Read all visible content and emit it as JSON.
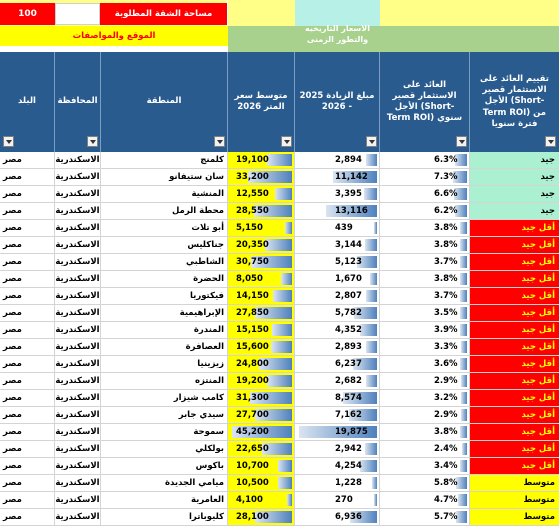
{
  "top": {
    "area_value": "100",
    "area_label": "مساحة الشقة المطلوبة",
    "location_label": "الموقع والمواصفات",
    "history_label": "الاسعار التاريخيه والتطور الزمنى"
  },
  "columns": {
    "rating": "تقييم العائد على الاستثمار قصير الأجل (Short-Term ROI) من فترة سنويا",
    "roi_short": "العائد على الاستثمار قصير الأجل (Short-Term ROI) سنوي",
    "increase": "مبلغ الزيادة 2025 - 2026",
    "price": "متوسط سعر المتر 2026",
    "region": "المنطقة",
    "governorate": "المحافظة",
    "country": "البلد"
  },
  "colors": {
    "header_blue": "#2a5b8f",
    "good_green": "#aaf0d1",
    "low_red": "#ff0000",
    "medium_yellow": "#ffff00",
    "light_green": "#a9d18e",
    "data_bar_blue": "#4f81bd"
  },
  "rows": [
    {
      "country": "مصر",
      "gov": "الاسكندرية",
      "region": "كليوباترا",
      "price": "28,100",
      "price_v": 28100,
      "inc": "6,936",
      "inc_v": 6936,
      "roi": "5.7%",
      "roi_v": 5.7,
      "rating": "متوسط",
      "level": "medium"
    }
  ],
  "all_rows": [
    {
      "country": "مصر",
      "gov": "الاسكندرية",
      "region": "كلمنج",
      "price": "19,100",
      "price_v": 19100,
      "inc": "2,894",
      "inc_v": 2894,
      "roi": "6.3%",
      "roi_v": 6.3,
      "rating": "جيد",
      "level": "good"
    },
    {
      "country": "مصر",
      "gov": "الاسكندرية",
      "region": "سان ستيفانو",
      "price": "33,200",
      "price_v": 33200,
      "inc": "11,142",
      "inc_v": 11142,
      "roi": "7.3%",
      "roi_v": 7.3,
      "rating": "جيد",
      "level": "good"
    },
    {
      "country": "مصر",
      "gov": "الاسكندرية",
      "region": "المنشية",
      "price": "12,550",
      "price_v": 12550,
      "inc": "3,395",
      "inc_v": 3395,
      "roi": "6.6%",
      "roi_v": 6.6,
      "rating": "جيد",
      "level": "good"
    },
    {
      "country": "مصر",
      "gov": "الاسكندرية",
      "region": "محطة الرمل",
      "price": "28,550",
      "price_v": 28550,
      "inc": "13,116",
      "inc_v": 13116,
      "roi": "6.2%",
      "roi_v": 6.2,
      "rating": "جيد",
      "level": "good"
    },
    {
      "country": "مصر",
      "gov": "الاسكندرية",
      "region": "أبو تلات",
      "price": "5,150",
      "price_v": 5150,
      "inc": "439",
      "inc_v": 439,
      "roi": "3.8%",
      "roi_v": 3.8,
      "rating": "أقل جيد",
      "level": "low"
    },
    {
      "country": "مصر",
      "gov": "الاسكندرية",
      "region": "جناكليس",
      "price": "20,350",
      "price_v": 20350,
      "inc": "3,144",
      "inc_v": 3144,
      "roi": "3.8%",
      "roi_v": 3.8,
      "rating": "أقل جيد",
      "level": "low"
    },
    {
      "country": "مصر",
      "gov": "الاسكندرية",
      "region": "الشاطبي",
      "price": "30,750",
      "price_v": 30750,
      "inc": "5,123",
      "inc_v": 5123,
      "roi": "3.7%",
      "roi_v": 3.7,
      "rating": "أقل جيد",
      "level": "low"
    },
    {
      "country": "مصر",
      "gov": "الاسكندرية",
      "region": "الحضرة",
      "price": "8,050",
      "price_v": 8050,
      "inc": "1,670",
      "inc_v": 1670,
      "roi": "3.8%",
      "roi_v": 3.8,
      "rating": "أقل جيد",
      "level": "low"
    },
    {
      "country": "مصر",
      "gov": "الاسكندرية",
      "region": "فيكتوريا",
      "price": "14,150",
      "price_v": 14150,
      "inc": "2,807",
      "inc_v": 2807,
      "roi": "3.7%",
      "roi_v": 3.7,
      "rating": "أقل جيد",
      "level": "low"
    },
    {
      "country": "مصر",
      "gov": "الاسكندرية",
      "region": "الإبراهيمية",
      "price": "27,850",
      "price_v": 27850,
      "inc": "5,782",
      "inc_v": 5782,
      "roi": "3.5%",
      "roi_v": 3.5,
      "rating": "أقل جيد",
      "level": "low"
    },
    {
      "country": "مصر",
      "gov": "الاسكندرية",
      "region": "المندرة",
      "price": "15,150",
      "price_v": 15150,
      "inc": "4,352",
      "inc_v": 4352,
      "roi": "3.9%",
      "roi_v": 3.9,
      "rating": "أقل جيد",
      "level": "low"
    },
    {
      "country": "مصر",
      "gov": "الاسكندرية",
      "region": "العصافرة",
      "price": "15,600",
      "price_v": 15600,
      "inc": "2,893",
      "inc_v": 2893,
      "roi": "3.3%",
      "roi_v": 3.3,
      "rating": "أقل جيد",
      "level": "low"
    },
    {
      "country": "مصر",
      "gov": "الاسكندرية",
      "region": "زيزينيا",
      "price": "24,800",
      "price_v": 24800,
      "inc": "6,237",
      "inc_v": 6237,
      "roi": "3.6%",
      "roi_v": 3.6,
      "rating": "أقل جيد",
      "level": "low"
    },
    {
      "country": "مصر",
      "gov": "الاسكندرية",
      "region": "المنتزه",
      "price": "19,200",
      "price_v": 19200,
      "inc": "2,682",
      "inc_v": 2682,
      "roi": "2.9%",
      "roi_v": 2.9,
      "rating": "أقل جيد",
      "level": "low"
    },
    {
      "country": "مصر",
      "gov": "الاسكندرية",
      "region": "كامب شيزار",
      "price": "31,300",
      "price_v": 31300,
      "inc": "8,574",
      "inc_v": 8574,
      "roi": "3.2%",
      "roi_v": 3.2,
      "rating": "أقل جيد",
      "level": "low"
    },
    {
      "country": "مصر",
      "gov": "الاسكندرية",
      "region": "سيدي جابر",
      "price": "27,700",
      "price_v": 27700,
      "inc": "7,162",
      "inc_v": 7162,
      "roi": "2.9%",
      "roi_v": 2.9,
      "rating": "أقل جيد",
      "level": "low"
    },
    {
      "country": "مصر",
      "gov": "الاسكندرية",
      "region": "سموحة",
      "price": "45,200",
      "price_v": 45200,
      "inc": "19,875",
      "inc_v": 19875,
      "roi": "3.8%",
      "roi_v": 3.8,
      "rating": "أقل جيد",
      "level": "low"
    },
    {
      "country": "مصر",
      "gov": "الاسكندرية",
      "region": "بولكلي",
      "price": "22,650",
      "price_v": 22650,
      "inc": "2,942",
      "inc_v": 2942,
      "roi": "2.4%",
      "roi_v": 2.4,
      "rating": "أقل جيد",
      "level": "low"
    },
    {
      "country": "مصر",
      "gov": "الاسكندرية",
      "region": "باكوس",
      "price": "10,700",
      "price_v": 10700,
      "inc": "4,254",
      "inc_v": 4254,
      "roi": "3.4%",
      "roi_v": 3.4,
      "rating": "أقل جيد",
      "level": "low"
    },
    {
      "country": "مصر",
      "gov": "الاسكندرية",
      "region": "ميامي الجديدة",
      "price": "10,500",
      "price_v": 10500,
      "inc": "1,228",
      "inc_v": 1228,
      "roi": "5.8%",
      "roi_v": 5.8,
      "rating": "متوسط",
      "level": "medium"
    },
    {
      "country": "مصر",
      "gov": "الاسكندرية",
      "region": "العامرية",
      "price": "4,100",
      "price_v": 4100,
      "inc": "270",
      "inc_v": 270,
      "roi": "4.7%",
      "roi_v": 4.7,
      "rating": "متوسط",
      "level": "medium"
    },
    {
      "country": "مصر",
      "gov": "الاسكندرية",
      "region": "كليوباترا",
      "price": "28,100",
      "price_v": 28100,
      "inc": "6,936",
      "inc_v": 6936,
      "roi": "5.7%",
      "roi_v": 5.7,
      "rating": "متوسط",
      "level": "medium"
    }
  ],
  "scales": {
    "price_max": 45200,
    "inc_max": 19875,
    "roi_max": 7.3
  }
}
